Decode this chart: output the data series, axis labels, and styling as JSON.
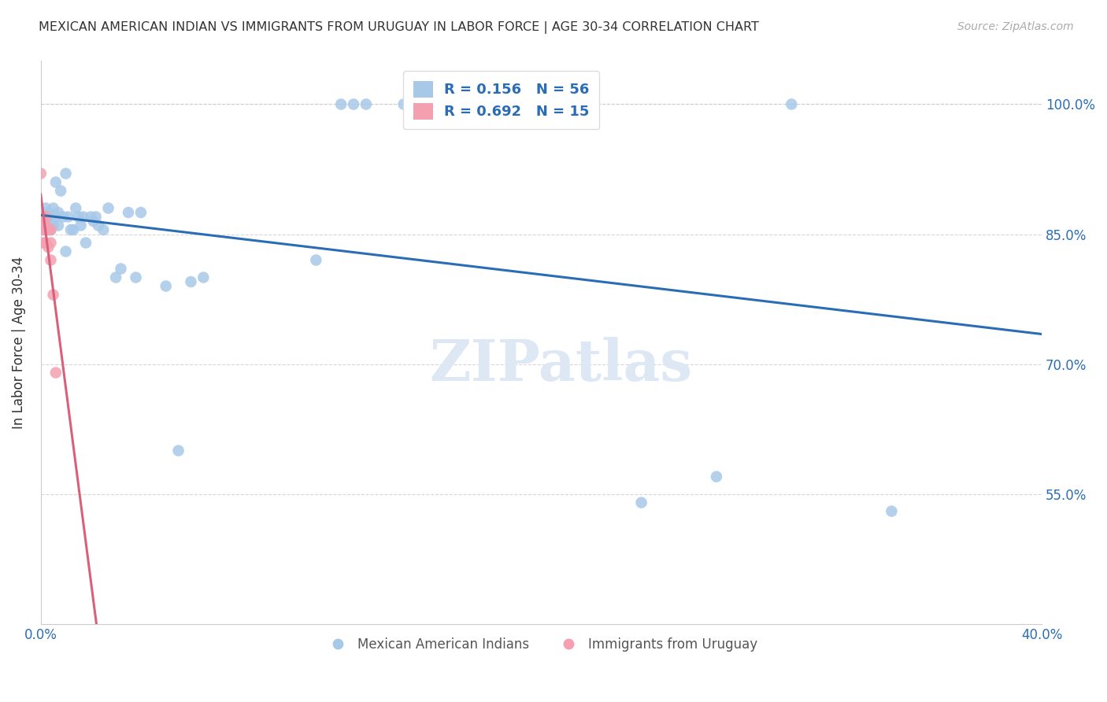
{
  "title": "MEXICAN AMERICAN INDIAN VS IMMIGRANTS FROM URUGUAY IN LABOR FORCE | AGE 30-34 CORRELATION CHART",
  "source_text": "Source: ZipAtlas.com",
  "ylabel": "In Labor Force | Age 30-34",
  "xlim": [
    0.0,
    0.4
  ],
  "ylim": [
    0.4,
    1.05
  ],
  "blue_R": 0.156,
  "blue_N": 56,
  "pink_R": 0.692,
  "pink_N": 15,
  "blue_color": "#a8c8e8",
  "pink_color": "#f4a0b0",
  "blue_line_color": "#2a6db5",
  "pink_line_color": "#d9607a",
  "grid_color": "#cccccc",
  "legend_label_blue": "Mexican American Indians",
  "legend_label_pink": "Immigrants from Uruguay",
  "blue_x": [
    0.0,
    0.001,
    0.001,
    0.001,
    0.002,
    0.002,
    0.002,
    0.003,
    0.003,
    0.003,
    0.004,
    0.004,
    0.005,
    0.005,
    0.006,
    0.006,
    0.007,
    0.007,
    0.008,
    0.009,
    0.01,
    0.01,
    0.011,
    0.012,
    0.013,
    0.014,
    0.015,
    0.016,
    0.017,
    0.018,
    0.02,
    0.021,
    0.022,
    0.023,
    0.025,
    0.027,
    0.03,
    0.032,
    0.035,
    0.038,
    0.04,
    0.05,
    0.055,
    0.06,
    0.065,
    0.11,
    0.12,
    0.125,
    0.13,
    0.145,
    0.165,
    0.175,
    0.24,
    0.27,
    0.3,
    0.34
  ],
  "blue_y": [
    0.855,
    0.87,
    0.86,
    0.855,
    0.88,
    0.87,
    0.86,
    0.875,
    0.86,
    0.855,
    0.87,
    0.855,
    0.88,
    0.86,
    0.91,
    0.87,
    0.875,
    0.86,
    0.9,
    0.87,
    0.92,
    0.83,
    0.87,
    0.855,
    0.855,
    0.88,
    0.87,
    0.86,
    0.87,
    0.84,
    0.87,
    0.865,
    0.87,
    0.86,
    0.855,
    0.88,
    0.8,
    0.81,
    0.875,
    0.8,
    0.875,
    0.79,
    0.6,
    0.795,
    0.8,
    0.82,
    1.0,
    1.0,
    1.0,
    1.0,
    1.0,
    1.0,
    0.54,
    0.57,
    1.0,
    0.53
  ],
  "pink_x": [
    0.0,
    0.0,
    0.001,
    0.001,
    0.001,
    0.002,
    0.002,
    0.002,
    0.003,
    0.003,
    0.004,
    0.004,
    0.004,
    0.005,
    0.006
  ],
  "pink_y": [
    0.92,
    0.86,
    0.87,
    0.855,
    0.84,
    0.87,
    0.86,
    0.84,
    0.855,
    0.835,
    0.855,
    0.84,
    0.82,
    0.78,
    0.69
  ]
}
